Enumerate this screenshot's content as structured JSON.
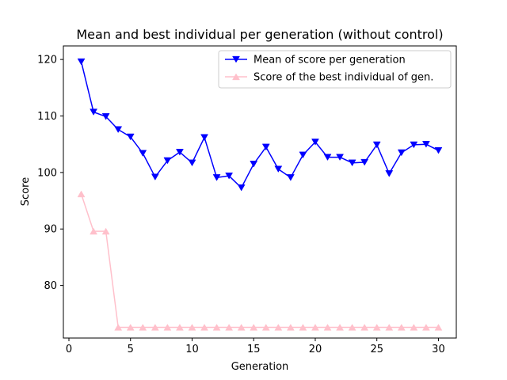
{
  "chart_data": {
    "type": "line",
    "title": "Mean and best individual per generation (without control)",
    "xlabel": "Generation",
    "ylabel": "Score",
    "xlim": [
      -0.45,
      31.45
    ],
    "ylim": [
      70.7,
      122.4
    ],
    "xticks": [
      0,
      5,
      10,
      15,
      20,
      25,
      30
    ],
    "yticks": [
      80,
      90,
      100,
      110,
      120
    ],
    "grid": false,
    "legend_position": "upper right",
    "x": [
      1,
      2,
      3,
      4,
      5,
      6,
      7,
      8,
      9,
      10,
      11,
      12,
      13,
      14,
      15,
      16,
      17,
      18,
      19,
      20,
      21,
      22,
      23,
      24,
      25,
      26,
      27,
      28,
      29,
      30
    ],
    "series": [
      {
        "name": "Mean of score per generation",
        "color": "#0000ff",
        "marker": "triangle-down",
        "values": [
          119.6,
          110.7,
          109.9,
          107.6,
          106.3,
          103.4,
          99.2,
          102.1,
          103.6,
          101.7,
          106.2,
          99.1,
          99.4,
          97.3,
          101.5,
          104.5,
          100.6,
          99.1,
          103.1,
          105.4,
          102.7,
          102.7,
          101.7,
          101.8,
          104.9,
          99.8,
          103.5,
          104.9,
          105.0,
          103.9
        ]
      },
      {
        "name": "Score of the best individual of gen.",
        "color": "#ffc0cb",
        "marker": "triangle-up",
        "values": [
          96.2,
          89.6,
          89.6,
          72.6,
          72.6,
          72.6,
          72.6,
          72.6,
          72.6,
          72.6,
          72.6,
          72.6,
          72.6,
          72.6,
          72.6,
          72.6,
          72.6,
          72.6,
          72.6,
          72.6,
          72.6,
          72.6,
          72.6,
          72.6,
          72.6,
          72.6,
          72.6,
          72.6,
          72.6,
          72.6
        ]
      }
    ]
  }
}
